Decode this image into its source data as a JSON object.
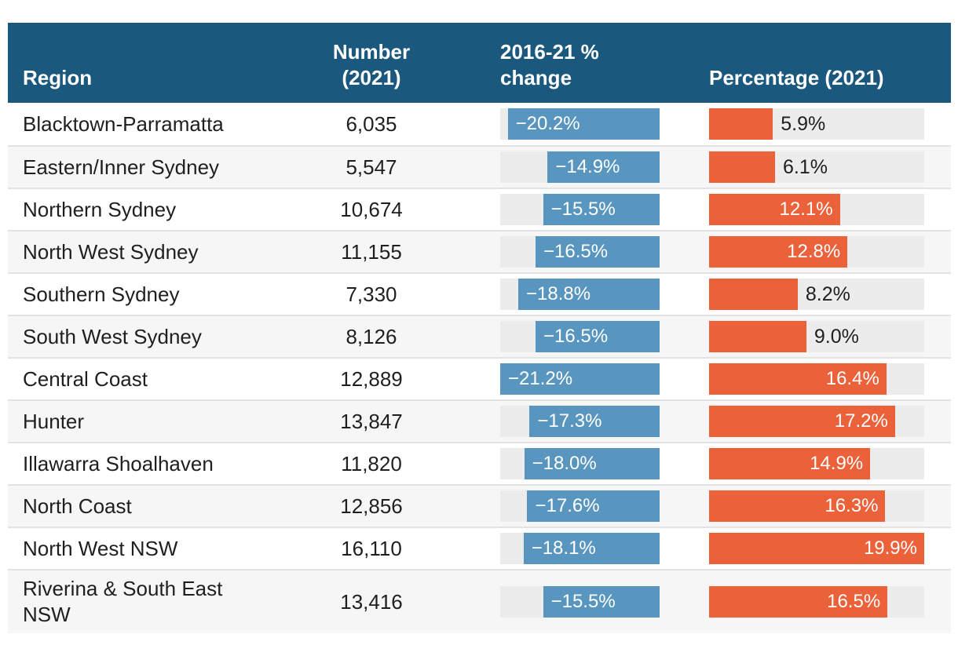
{
  "colors": {
    "header_bg": "#1b587e",
    "header_text": "#ffffff",
    "change_bar": "#5996bf",
    "percentage_bar": "#eb613a",
    "bar_track": "#ececec",
    "row_alt_bg": "#f6f6f6",
    "row_separator": "#e3e3e3",
    "body_text": "#1f1f1f"
  },
  "table": {
    "columns": [
      {
        "label": "Region"
      },
      {
        "label": "Number (2021)"
      },
      {
        "label": "2016-21 % change"
      },
      {
        "label": "Percentage (2021)"
      }
    ],
    "change_axis_max": 21.2,
    "pct_axis_max": 19.9,
    "rows": [
      {
        "region": "Blacktown-Parramatta",
        "number": "6,035",
        "change_label": "−20.2%",
        "change_value": -20.2,
        "pct_label": "5.9%",
        "pct_value": 5.9
      },
      {
        "region": "Eastern/Inner Sydney",
        "number": "5,547",
        "change_label": "−14.9%",
        "change_value": -14.9,
        "pct_label": "6.1%",
        "pct_value": 6.1
      },
      {
        "region": "Northern Sydney",
        "number": "10,674",
        "change_label": "−15.5%",
        "change_value": -15.5,
        "pct_label": "12.1%",
        "pct_value": 12.1
      },
      {
        "region": "North West Sydney",
        "number": "11,155",
        "change_label": "−16.5%",
        "change_value": -16.5,
        "pct_label": "12.8%",
        "pct_value": 12.8
      },
      {
        "region": "Southern Sydney",
        "number": "7,330",
        "change_label": "−18.8%",
        "change_value": -18.8,
        "pct_label": "8.2%",
        "pct_value": 8.2
      },
      {
        "region": "South West Sydney",
        "number": "8,126",
        "change_label": "−16.5%",
        "change_value": -16.5,
        "pct_label": "9.0%",
        "pct_value": 9.0
      },
      {
        "region": "Central Coast",
        "number": "12,889",
        "change_label": "−21.2%",
        "change_value": -21.2,
        "pct_label": "16.4%",
        "pct_value": 16.4
      },
      {
        "region": "Hunter",
        "number": "13,847",
        "change_label": "−17.3%",
        "change_value": -17.3,
        "pct_label": "17.2%",
        "pct_value": 17.2
      },
      {
        "region": "Illawarra Shoalhaven",
        "number": "11,820",
        "change_label": "−18.0%",
        "change_value": -18.0,
        "pct_label": "14.9%",
        "pct_value": 14.9
      },
      {
        "region": "North Coast",
        "number": "12,856",
        "change_label": "−17.6%",
        "change_value": -17.6,
        "pct_label": "16.3%",
        "pct_value": 16.3
      },
      {
        "region": "North West NSW",
        "number": "16,110",
        "change_label": "−18.1%",
        "change_value": -18.1,
        "pct_label": "19.9%",
        "pct_value": 19.9
      },
      {
        "region": "Riverina & South East NSW",
        "number": "13,416",
        "change_label": "−15.5%",
        "change_value": -15.5,
        "pct_label": "16.5%",
        "pct_value": 16.5
      }
    ]
  },
  "chart_data": {
    "type": "table",
    "title": "",
    "categories": [
      "Blacktown-Parramatta",
      "Eastern/Inner Sydney",
      "Northern Sydney",
      "North West Sydney",
      "Southern Sydney",
      "South West Sydney",
      "Central Coast",
      "Hunter",
      "Illawarra Shoalhaven",
      "North Coast",
      "North West NSW",
      "Riverina & South East NSW"
    ],
    "series": [
      {
        "name": "Number (2021)",
        "type": "value",
        "values": [
          6035,
          5547,
          10674,
          11155,
          7330,
          8126,
          12889,
          13847,
          11820,
          12856,
          16110,
          13416
        ]
      },
      {
        "name": "2016-21 % change",
        "type": "bar",
        "bar_direction": "right-anchored",
        "bar_color": "#5996bf",
        "axis_range": [
          -21.2,
          0
        ],
        "values": [
          -20.2,
          -14.9,
          -15.5,
          -16.5,
          -18.8,
          -16.5,
          -21.2,
          -17.3,
          -18.0,
          -17.6,
          -18.1,
          -15.5
        ]
      },
      {
        "name": "Percentage (2021)",
        "type": "bar",
        "bar_direction": "left-anchored",
        "bar_color": "#eb613a",
        "axis_range": [
          0,
          19.9
        ],
        "values": [
          5.9,
          6.1,
          12.1,
          12.8,
          8.2,
          9.0,
          16.4,
          17.2,
          14.9,
          16.3,
          19.9,
          16.5
        ]
      }
    ],
    "legend_position": "none",
    "grid": false
  }
}
